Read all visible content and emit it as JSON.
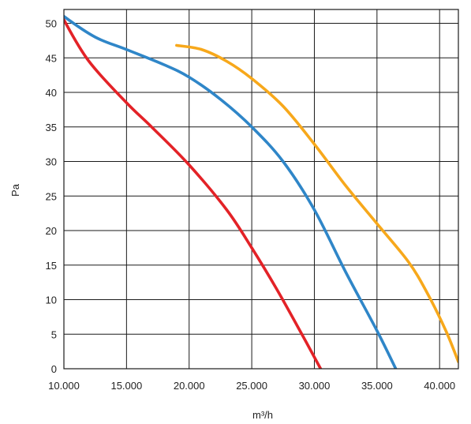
{
  "chart_data": {
    "type": "line",
    "xlabel": "m³/h",
    "ylabel": "Pa",
    "xlim": [
      10000,
      41500
    ],
    "ylim": [
      0,
      52
    ],
    "x_ticks": [
      10000,
      15000,
      20000,
      25000,
      30000,
      35000,
      40000
    ],
    "x_tick_labels": [
      "10.000",
      "15.000",
      "20.000",
      "25.000",
      "30.000",
      "35.000",
      "40.000"
    ],
    "y_ticks": [
      0,
      5,
      10,
      15,
      20,
      25,
      30,
      35,
      40,
      45,
      50
    ],
    "y_tick_labels": [
      "0",
      "5",
      "10",
      "15",
      "20",
      "25",
      "30",
      "35",
      "40",
      "45",
      "50"
    ],
    "grid": true,
    "legend": "none",
    "series": [
      {
        "color": "#e32227",
        "points": [
          [
            9700,
            52
          ],
          [
            10000,
            50.5
          ],
          [
            12000,
            44.5
          ],
          [
            15000,
            38.5
          ],
          [
            17000,
            35
          ],
          [
            20000,
            29.5
          ],
          [
            23000,
            23
          ],
          [
            25000,
            17.5
          ],
          [
            27000,
            11.5
          ],
          [
            29000,
            5
          ],
          [
            30500,
            0
          ]
        ]
      },
      {
        "color": "#2f86c8",
        "points": [
          [
            9500,
            52
          ],
          [
            10000,
            51
          ],
          [
            12500,
            48
          ],
          [
            15000,
            46.2
          ],
          [
            18000,
            44
          ],
          [
            20000,
            42.2
          ],
          [
            22500,
            39
          ],
          [
            25000,
            35
          ],
          [
            27500,
            30
          ],
          [
            30000,
            23
          ],
          [
            32500,
            14
          ],
          [
            35000,
            5.5
          ],
          [
            36500,
            0
          ]
        ]
      },
      {
        "color": "#f7a81b",
        "points": [
          [
            19000,
            46.8
          ],
          [
            21000,
            46.2
          ],
          [
            23000,
            44.5
          ],
          [
            25000,
            42
          ],
          [
            27500,
            38
          ],
          [
            30000,
            32.5
          ],
          [
            32500,
            26.5
          ],
          [
            35000,
            21
          ],
          [
            37500,
            15.5
          ],
          [
            39000,
            11
          ],
          [
            40500,
            5.5
          ],
          [
            41500,
            1
          ]
        ]
      }
    ]
  }
}
